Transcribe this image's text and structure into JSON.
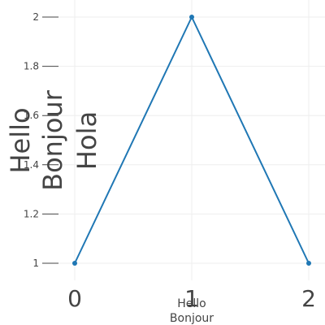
{
  "chart_data": {
    "type": "line",
    "x": [
      0,
      1,
      2
    ],
    "series": [
      {
        "values": [
          1,
          2,
          1
        ],
        "color": "#1f77b4",
        "markers": true
      }
    ],
    "xticks": [
      "0",
      "1",
      "2"
    ],
    "yticks": [
      "1",
      "1.2",
      "1.4",
      "1.6",
      "1.8",
      "2"
    ],
    "xlabel_lines": [
      "Hello",
      "Bonjour"
    ],
    "ylabel_lines": [
      "Hello",
      "Bonjour",
      "Hola"
    ],
    "xlim": [
      0,
      2
    ],
    "ylim": [
      1,
      2
    ],
    "grid": true,
    "legend": "none"
  }
}
